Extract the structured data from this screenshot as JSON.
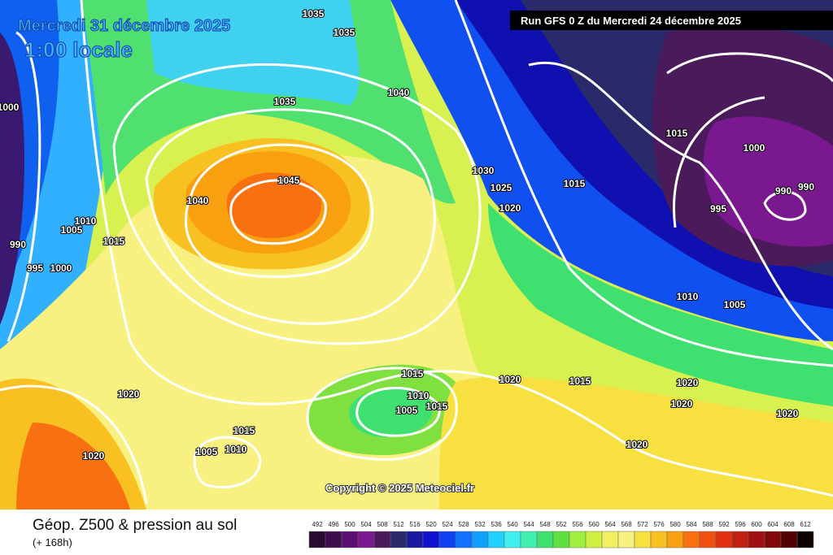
{
  "header": {
    "date": "Mercredi 31 décembre 2025",
    "time": "1:00 locale",
    "run": "Run GFS 0 Z du Mercredi 24 décembre 2025"
  },
  "isobar_labels": [
    1035,
    1035,
    1040,
    1035,
    1000,
    1045,
    1040,
    1030,
    1025,
    1020,
    1015,
    1015,
    1000,
    990,
    990,
    995,
    1010,
    1005,
    1015,
    990,
    995,
    1000,
    1010,
    1005,
    1015,
    1020,
    1015,
    1020,
    1010,
    1005,
    1015,
    1020,
    1020,
    1020,
    1015,
    1005,
    1010,
    1020,
    1020
  ],
  "copyright": "Copyright © 2025 Meteociel.fr",
  "footer": {
    "title": "Géop. Z500 & pression au sol",
    "subtitle": "(+ 168h)"
  },
  "legend": {
    "values": [
      492,
      496,
      500,
      504,
      508,
      512,
      516,
      520,
      524,
      528,
      532,
      536,
      540,
      544,
      548,
      552,
      556,
      560,
      564,
      568,
      572,
      576,
      580,
      584,
      588,
      592,
      596,
      600,
      604,
      608,
      612
    ],
    "colors": [
      "#2a0a30",
      "#3c0c4c",
      "#5a1070",
      "#7a1890",
      "#4a1a5a",
      "#2a2a6a",
      "#1a1aa0",
      "#1010d0",
      "#1040f0",
      "#1070ff",
      "#10a0ff",
      "#20d0ff",
      "#40f0f0",
      "#40f0b0",
      "#40e070",
      "#60e040",
      "#a0f040",
      "#d0f040",
      "#f0f060",
      "#f8f080",
      "#f8e040",
      "#f8c020",
      "#f8a010",
      "#f87010",
      "#f05010",
      "#e03010",
      "#c02010",
      "#a01010",
      "#800808",
      "#500000",
      "#100000"
    ]
  }
}
